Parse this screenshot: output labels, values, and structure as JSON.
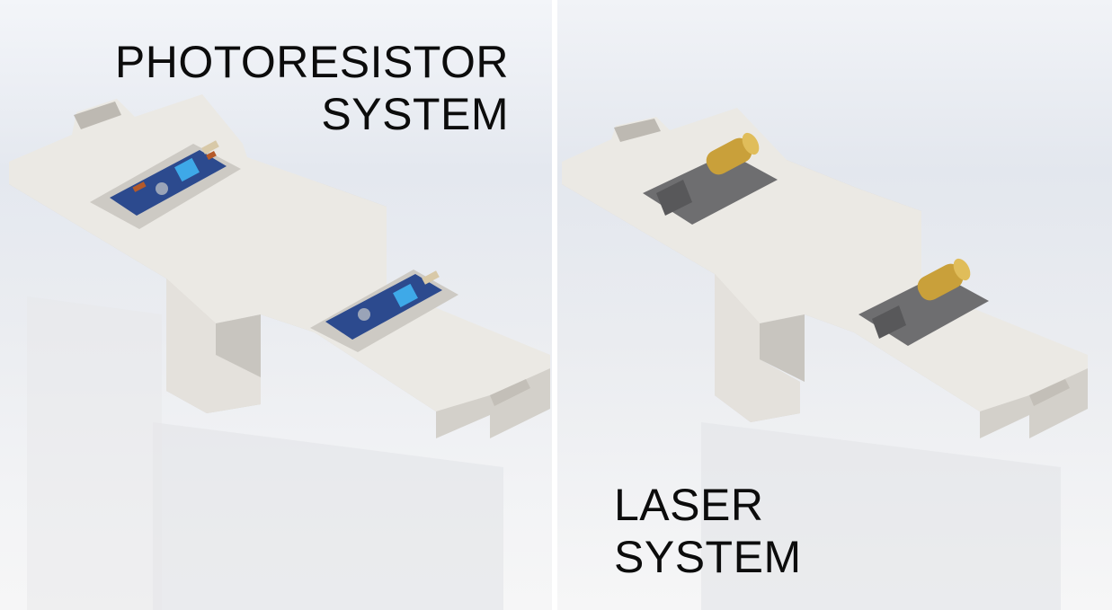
{
  "colors": {
    "bracket": "#e9e7e2",
    "bracket_shadow": "#c9c6c0",
    "sensor_board": "#2c4a8e",
    "potentiometer": "#3ea9e8",
    "laser_brass": "#c9a03a",
    "laser_mount": "#6e6e70"
  },
  "photoresistor_panel": {
    "caption_line1": "PHOTORESISTOR",
    "caption_line2": "SYSTEM"
  },
  "laser_panel": {
    "caption_line1": "LASER",
    "caption_line2": "SYSTEM"
  }
}
